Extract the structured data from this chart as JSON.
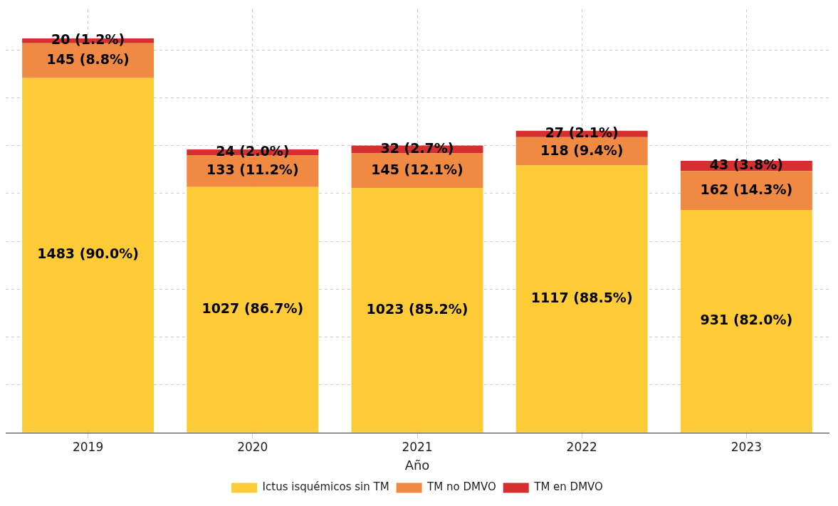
{
  "chart_data": {
    "type": "bar",
    "stacked": true,
    "xlabel": "Año",
    "categories": [
      "2019",
      "2020",
      "2021",
      "2022",
      "2023"
    ],
    "series": [
      {
        "name": "Ictus isquémicos sin TM",
        "color": "#fccb35",
        "values": [
          1483,
          1027,
          1023,
          1117,
          931
        ],
        "value_labels": [
          "1483 (90.0%)",
          "1027 (86.7%)",
          "1023 (85.2%)",
          "1117 (88.5%)",
          "931 (82.0%)"
        ]
      },
      {
        "name": "TM no DMVO",
        "color": "#f08a42",
        "values": [
          145,
          133,
          145,
          118,
          162
        ],
        "value_labels": [
          "145 (8.8%)",
          "133 (11.2%)",
          "145 (12.1%)",
          "118 (9.4%)",
          "162 (14.3%)"
        ]
      },
      {
        "name": "TM en DMVO",
        "color": "#d62f2f",
        "values": [
          20,
          24,
          32,
          27,
          43
        ],
        "value_labels": [
          "20 (1.2%)",
          "24 (2.0%)",
          "32 (2.7%)",
          "27 (2.1%)",
          "43 (3.8%)"
        ]
      }
    ],
    "ylim": [
      0,
      1770
    ],
    "yticks": [
      {
        "value": 0,
        "label": null
      },
      {
        "value": 200,
        "label": null
      },
      {
        "value": 400,
        "label": null
      },
      {
        "value": 600,
        "label": null
      },
      {
        "value": 800,
        "label": null
      },
      {
        "value": 1000,
        "label": null
      },
      {
        "value": 1200,
        "label": null
      },
      {
        "value": 1400,
        "label": null
      },
      {
        "value": 1600,
        "label": null
      }
    ],
    "tick_labels": "x",
    "grid": true,
    "legend": "bottom"
  }
}
